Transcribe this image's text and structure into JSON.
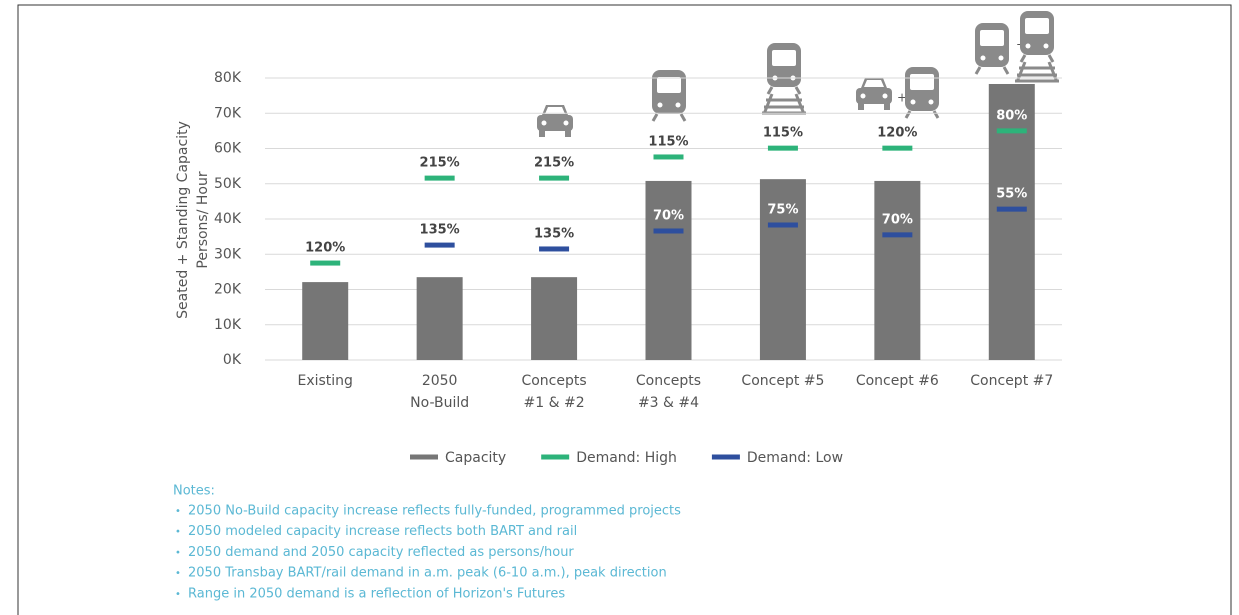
{
  "chart_data": {
    "type": "bar",
    "y_label": [
      "Seated + Standing Capacity",
      "Persons/ Hour"
    ],
    "categories": [
      [
        "Existing"
      ],
      [
        "2050",
        "No-Build"
      ],
      [
        "Concepts",
        "#1 & #2"
      ],
      [
        "Concepts",
        "#3 & #4"
      ],
      [
        "Concept #5"
      ],
      [
        "Concept #6"
      ],
      [
        "Concept #7"
      ]
    ],
    "ylim": [
      0,
      80
    ],
    "yticks": [
      {
        "value": 0,
        "label": "0K"
      },
      {
        "value": 10,
        "label": "10K"
      },
      {
        "value": 20,
        "label": "20K"
      },
      {
        "value": 30,
        "label": "30K"
      },
      {
        "value": 40,
        "label": "40K"
      },
      {
        "value": 50,
        "label": "50K"
      },
      {
        "value": 60,
        "label": "60K"
      },
      {
        "value": 70,
        "label": "70K"
      },
      {
        "value": 80,
        "label": "80K"
      }
    ],
    "grid": true,
    "series": [
      {
        "name": "Capacity",
        "color": "#767676",
        "kind": "bar",
        "values": [
          22.1,
          23.5,
          23.5,
          50.8,
          51.3,
          50.8,
          78.3
        ]
      },
      {
        "name": "Demand: High",
        "color": "#2db37a",
        "kind": "dash",
        "values": [
          27.5,
          51.6,
          51.6,
          57.6,
          60.1,
          60.1,
          65.0
        ],
        "percent_labels": [
          "120%",
          "215%",
          "215%",
          "115%",
          "115%",
          "120%",
          "80%"
        ]
      },
      {
        "name": "Demand: Low",
        "color": "#2e4f9e",
        "kind": "dash",
        "values": [
          null,
          32.6,
          31.5,
          36.6,
          38.3,
          35.5,
          42.8
        ],
        "percent_labels": [
          null,
          "135%",
          "135%",
          "70%",
          "75%",
          "70%",
          "55%"
        ]
      }
    ]
  },
  "notes": {
    "title": "Notes:",
    "items": [
      "2050 No-Build capacity increase reflects fully-funded, programmed projects",
      "2050 modeled capacity increase reflects both BART and rail",
      "2050 demand and 2050 capacity reflected as persons/hour",
      "2050 Transbay BART/rail demand in a.m. peak (6-10 a.m.), peak direction",
      "Range in 2050 demand is a reflection of Horizon's Futures"
    ]
  }
}
